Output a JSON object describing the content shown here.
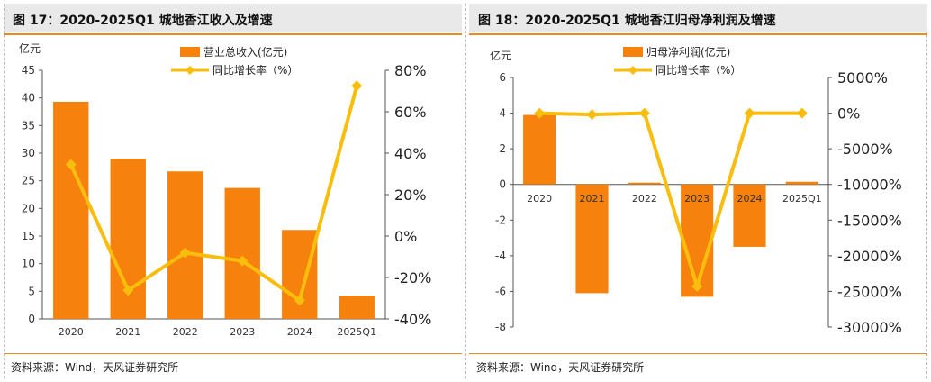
{
  "colors": {
    "bar": "#f6820d",
    "line": "#f9bd0e",
    "accent": "#f08a1c",
    "title_bg": "#e9e9e9"
  },
  "source": "资料来源：Wind，天风证券研究所",
  "charts": [
    {
      "title": "图 17：2020-2025Q1 城地香江收入及增速",
      "unit": "亿元",
      "chart_data": {
        "type": "bar",
        "categories": [
          "2020",
          "2021",
          "2022",
          "2023",
          "2024",
          "2025Q1"
        ],
        "series": [
          {
            "name": "营业总收入(亿元)",
            "kind": "bar",
            "axis": "left",
            "values": [
              39.3,
              29.0,
              26.7,
              23.7,
              16.1,
              4.2
            ]
          },
          {
            "name": "同比增长率（%）",
            "kind": "line",
            "axis": "right",
            "values": [
              34.5,
              -26.2,
              -8.1,
              -12.0,
              -31.0,
              72.5
            ]
          }
        ],
        "ylim_left": [
          0,
          45
        ],
        "yticks_left": [
          "0",
          "5",
          "10",
          "15",
          "20",
          "25",
          "30",
          "35",
          "40",
          "45"
        ],
        "ylim_right": [
          -40,
          80
        ],
        "yticks_right": [
          "-40%",
          "-20%",
          "0%",
          "20%",
          "40%",
          "60%",
          "80%"
        ],
        "legend": "top-center"
      }
    },
    {
      "title": "图 18：2020-2025Q1 城地香江归母净利润及增速",
      "unit": "亿元",
      "chart_data": {
        "type": "bar",
        "categories": [
          "2020",
          "2021",
          "2022",
          "2023",
          "2024",
          "2025Q1"
        ],
        "series": [
          {
            "name": "归母净利润(亿元)",
            "kind": "bar",
            "axis": "left",
            "values": [
              3.9,
              -6.1,
              0.1,
              -6.3,
              -3.5,
              0.15
            ]
          },
          {
            "name": "同比增长率（%）",
            "kind": "line",
            "axis": "right",
            "values": [
              0,
              -200,
              0,
              -24300,
              0,
              0
            ]
          }
        ],
        "ylim_left": [
          -8,
          6
        ],
        "yticks_left": [
          "-8",
          "-6",
          "-4",
          "-2",
          "0",
          "2",
          "4",
          "6"
        ],
        "ylim_right": [
          -30000,
          5000
        ],
        "yticks_right": [
          "-30000%",
          "-25000%",
          "-20000%",
          "-15000%",
          "-10000%",
          "-5000%",
          "0%",
          "5000%"
        ],
        "legend": "top-center"
      }
    }
  ]
}
